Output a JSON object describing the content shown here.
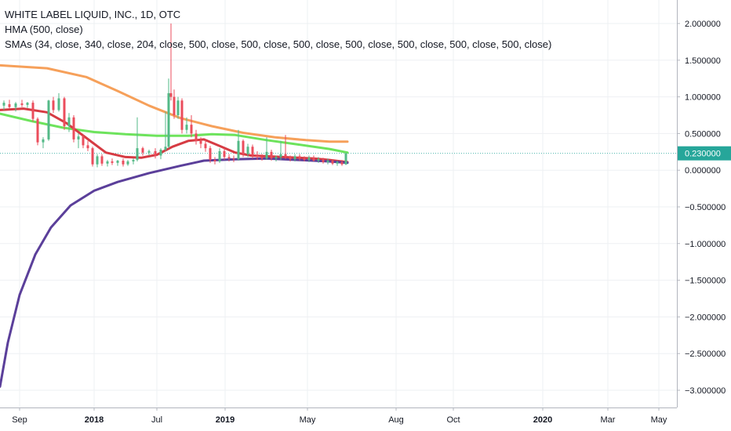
{
  "legend": {
    "title": "WHITE LABEL LIQUID, INC., 1D, OTC",
    "hma_label": "HMA (500, close)",
    "smas_label": "SMAs (34, close, 340, close, 204, close, 500, close, 500, close, 500, close, 500, close, 500, close, 500, close, 500, close)"
  },
  "chart_data": {
    "type": "line",
    "title": "WHITE LABEL LIQUID, INC., 1D, OTC",
    "xlabel": "",
    "ylabel": "",
    "x_tick_labels": [
      "Sep",
      "2018",
      "Jul",
      "2019",
      "May",
      "Aug",
      "Oct",
      "2020",
      "Mar",
      "May"
    ],
    "y_ticks": [
      2.0,
      1.5,
      1.0,
      0.5,
      0.0,
      -0.5,
      -1.0,
      -1.5,
      -2.0,
      -2.5,
      -3.0
    ],
    "y_tick_labels": [
      "2.000000",
      "1.500000",
      "1.000000",
      "0.500000",
      "0.000000",
      "−0.500000",
      "−1.000000",
      "−1.500000",
      "−2.000000",
      "−2.500000",
      "−3.000000"
    ],
    "ylim": [
      -3.1,
      2.2
    ],
    "last_price_label": "0.230000",
    "last_price": 0.23,
    "grid": true,
    "series": [
      {
        "color": "#f6a05a",
        "points": [
          [
            0,
            1.43
          ],
          [
            60,
            1.39
          ],
          [
            110,
            1.27
          ],
          [
            150,
            1.08
          ],
          [
            190,
            0.88
          ],
          [
            230,
            0.71
          ],
          [
            270,
            0.6
          ],
          [
            310,
            0.51
          ],
          [
            350,
            0.45
          ],
          [
            390,
            0.41
          ],
          [
            420,
            0.39
          ],
          [
            443,
            0.39
          ]
        ]
      },
      {
        "color": "#6de35c",
        "points": [
          [
            0,
            0.77
          ],
          [
            40,
            0.67
          ],
          [
            80,
            0.58
          ],
          [
            120,
            0.52
          ],
          [
            160,
            0.49
          ],
          [
            200,
            0.47
          ],
          [
            240,
            0.47
          ],
          [
            270,
            0.49
          ],
          [
            300,
            0.48
          ],
          [
            340,
            0.41
          ],
          [
            380,
            0.35
          ],
          [
            420,
            0.29
          ],
          [
            443,
            0.24
          ]
        ]
      },
      {
        "color": "#d63b43",
        "points": [
          [
            0,
            0.82
          ],
          [
            30,
            0.84
          ],
          [
            60,
            0.79
          ],
          [
            85,
            0.64
          ],
          [
            110,
            0.44
          ],
          [
            135,
            0.24
          ],
          [
            160,
            0.18
          ],
          [
            180,
            0.17
          ],
          [
            200,
            0.21
          ],
          [
            220,
            0.32
          ],
          [
            240,
            0.4
          ],
          [
            260,
            0.42
          ],
          [
            280,
            0.33
          ],
          [
            300,
            0.24
          ],
          [
            320,
            0.2
          ],
          [
            340,
            0.19
          ],
          [
            360,
            0.18
          ],
          [
            380,
            0.17
          ],
          [
            400,
            0.16
          ],
          [
            420,
            0.14
          ],
          [
            435,
            0.12
          ],
          [
            443,
            0.11
          ]
        ]
      },
      {
        "color": "#5b3f9a",
        "points": [
          [
            0,
            -2.95
          ],
          [
            10,
            -2.35
          ],
          [
            25,
            -1.7
          ],
          [
            45,
            -1.15
          ],
          [
            65,
            -0.78
          ],
          [
            90,
            -0.48
          ],
          [
            120,
            -0.28
          ],
          [
            150,
            -0.16
          ],
          [
            190,
            -0.04
          ],
          [
            230,
            0.06
          ],
          [
            260,
            0.13
          ],
          [
            300,
            0.15
          ],
          [
            340,
            0.16
          ],
          [
            380,
            0.14
          ],
          [
            420,
            0.12
          ],
          [
            443,
            0.1
          ]
        ]
      }
    ],
    "candles": [
      [
        5,
        0.88,
        0.95,
        0.82,
        0.92
      ],
      [
        12,
        0.9,
        0.96,
        0.84,
        0.86
      ],
      [
        20,
        0.86,
        0.93,
        0.8,
        0.91
      ],
      [
        28,
        0.91,
        0.96,
        0.86,
        0.89
      ],
      [
        35,
        0.89,
        0.93,
        0.85,
        0.92
      ],
      [
        42,
        0.92,
        0.95,
        0.66,
        0.7
      ],
      [
        48,
        0.7,
        0.72,
        0.34,
        0.38
      ],
      [
        55,
        0.38,
        0.45,
        0.3,
        0.42
      ],
      [
        62,
        0.42,
        0.96,
        0.4,
        0.95
      ],
      [
        68,
        0.95,
        1.0,
        0.78,
        0.82
      ],
      [
        75,
        0.82,
        1.05,
        0.8,
        0.98
      ],
      [
        82,
        0.98,
        1.0,
        0.55,
        0.6
      ],
      [
        88,
        0.6,
        0.78,
        0.52,
        0.72
      ],
      [
        94,
        0.72,
        0.75,
        0.38,
        0.42
      ],
      [
        100,
        0.42,
        0.5,
        0.3,
        0.46
      ],
      [
        106,
        0.46,
        0.48,
        0.3,
        0.34
      ],
      [
        112,
        0.34,
        0.4,
        0.26,
        0.3
      ],
      [
        118,
        0.3,
        0.32,
        0.05,
        0.08
      ],
      [
        124,
        0.08,
        0.22,
        0.04,
        0.19
      ],
      [
        130,
        0.19,
        0.22,
        0.06,
        0.09
      ],
      [
        137,
        0.09,
        0.14,
        0.05,
        0.12
      ],
      [
        143,
        0.12,
        0.16,
        0.07,
        0.1
      ],
      [
        150,
        0.1,
        0.14,
        0.06,
        0.13
      ],
      [
        157,
        0.13,
        0.16,
        0.05,
        0.08
      ],
      [
        163,
        0.08,
        0.14,
        0.06,
        0.12
      ],
      [
        170,
        0.12,
        0.16,
        0.08,
        0.14
      ],
      [
        175,
        0.14,
        0.72,
        0.12,
        0.3
      ],
      [
        182,
        0.3,
        0.32,
        0.2,
        0.24
      ],
      [
        190,
        0.24,
        0.28,
        0.2,
        0.26
      ],
      [
        198,
        0.26,
        0.3,
        0.16,
        0.2
      ],
      [
        205,
        0.2,
        0.3,
        0.15,
        0.28
      ],
      [
        211,
        0.28,
        0.8,
        0.26,
        0.32
      ],
      [
        215,
        0.32,
        1.25,
        0.3,
        1.05
      ],
      [
        218,
        1.05,
        2.0,
        0.95,
        1.0
      ],
      [
        222,
        1.0,
        1.1,
        0.7,
        0.75
      ],
      [
        227,
        0.75,
        1.0,
        0.7,
        0.95
      ],
      [
        232,
        0.95,
        0.98,
        0.5,
        0.55
      ],
      [
        238,
        0.55,
        0.72,
        0.5,
        0.62
      ],
      [
        244,
        0.62,
        0.75,
        0.45,
        0.5
      ],
      [
        250,
        0.5,
        0.55,
        0.35,
        0.4
      ],
      [
        256,
        0.4,
        0.45,
        0.3,
        0.36
      ],
      [
        262,
        0.36,
        0.42,
        0.25,
        0.3
      ],
      [
        268,
        0.3,
        0.33,
        0.1,
        0.14
      ],
      [
        274,
        0.14,
        0.18,
        0.08,
        0.12
      ],
      [
        280,
        0.12,
        0.3,
        0.1,
        0.26
      ],
      [
        286,
        0.26,
        0.3,
        0.14,
        0.18
      ],
      [
        292,
        0.18,
        0.22,
        0.12,
        0.16
      ],
      [
        298,
        0.16,
        0.2,
        0.11,
        0.15
      ],
      [
        304,
        0.15,
        0.55,
        0.13,
        0.4
      ],
      [
        310,
        0.4,
        0.42,
        0.18,
        0.22
      ],
      [
        316,
        0.22,
        0.36,
        0.18,
        0.32
      ],
      [
        322,
        0.32,
        0.35,
        0.16,
        0.2
      ],
      [
        328,
        0.2,
        0.26,
        0.14,
        0.18
      ],
      [
        334,
        0.18,
        0.22,
        0.13,
        0.16
      ],
      [
        340,
        0.16,
        0.45,
        0.14,
        0.25
      ],
      [
        346,
        0.25,
        0.28,
        0.13,
        0.16
      ],
      [
        352,
        0.16,
        0.2,
        0.12,
        0.18
      ],
      [
        358,
        0.18,
        0.4,
        0.14,
        0.22
      ],
      [
        364,
        0.22,
        0.48,
        0.15,
        0.18
      ],
      [
        370,
        0.18,
        0.2,
        0.12,
        0.15
      ],
      [
        376,
        0.15,
        0.22,
        0.12,
        0.19
      ],
      [
        382,
        0.19,
        0.22,
        0.13,
        0.16
      ],
      [
        388,
        0.16,
        0.19,
        0.12,
        0.14
      ],
      [
        394,
        0.14,
        0.2,
        0.11,
        0.17
      ],
      [
        400,
        0.17,
        0.2,
        0.12,
        0.13
      ],
      [
        406,
        0.13,
        0.18,
        0.1,
        0.15
      ],
      [
        412,
        0.15,
        0.17,
        0.09,
        0.11
      ],
      [
        418,
        0.11,
        0.16,
        0.08,
        0.13
      ],
      [
        424,
        0.13,
        0.15,
        0.07,
        0.09
      ],
      [
        430,
        0.09,
        0.13,
        0.06,
        0.11
      ],
      [
        436,
        0.11,
        0.14,
        0.06,
        0.08
      ],
      [
        441,
        0.08,
        0.24,
        0.07,
        0.23
      ]
    ]
  }
}
